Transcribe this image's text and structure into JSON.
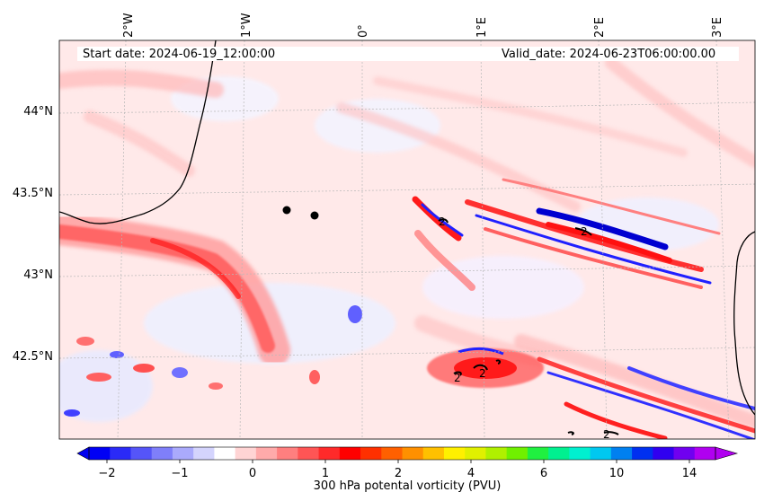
{
  "map": {
    "start_label": "Start date: 2024-06-19_12:00:00",
    "valid_label": "Valid_date: 2024-06-23T06:00:00.00",
    "lon_labels": [
      "2°W",
      "1°W",
      "0°",
      "1°E",
      "2°E",
      "3°E"
    ],
    "lat_labels": [
      "44°N",
      "43.5°N",
      "43°N",
      "42.5°N"
    ],
    "contour_labels": [
      "2",
      "2",
      "2",
      "2",
      "2"
    ],
    "background_color": "#ffe9e9",
    "positive_color": "#ff2020",
    "negative_color": "#2020ff"
  },
  "colorbar": {
    "label": "300 hPa potental vorticity (PVU)",
    "tick_labels": [
      "−2",
      "−1",
      "0",
      "1",
      "2",
      "4",
      "6",
      "10",
      "14"
    ],
    "colors": [
      "#0000f5",
      "#2a2af7",
      "#5555f8",
      "#7f7ffa",
      "#aaaafc",
      "#d4d4fd",
      "#ffffff",
      "#ffd4d4",
      "#ffaaaa",
      "#ff7f7f",
      "#ff5555",
      "#ff2a2a",
      "#ff0000",
      "#ff3000",
      "#ff6000",
      "#ff9000",
      "#ffc000",
      "#fff000",
      "#e0f000",
      "#b0f000",
      "#70f000",
      "#20f040",
      "#00f090",
      "#00f0d0",
      "#00c8f0",
      "#0080f0",
      "#0030f0",
      "#3000f0",
      "#7000f0",
      "#b000f0"
    ]
  }
}
